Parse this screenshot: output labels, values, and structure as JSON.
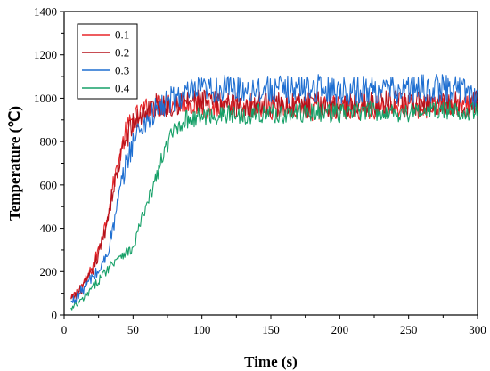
{
  "chart_data": {
    "type": "line",
    "xlabel": "Time (s)",
    "ylabel": "Temperature (℃)",
    "xlim": [
      0,
      300
    ],
    "ylim": [
      0,
      1400
    ],
    "xticks": [
      0,
      50,
      100,
      150,
      200,
      250,
      300
    ],
    "yticks": [
      0,
      200,
      400,
      600,
      800,
      1000,
      1200,
      1400
    ],
    "grid": false,
    "legend_position": "top-left",
    "series": [
      {
        "name": "0.1",
        "color": "#e8272a",
        "x": [
          5,
          10,
          15,
          20,
          25,
          30,
          35,
          40,
          45,
          50,
          55,
          60,
          65,
          70,
          75,
          80,
          85,
          90,
          95,
          100,
          110,
          120,
          130,
          140,
          150,
          160,
          170,
          180,
          190,
          200,
          210,
          220,
          230,
          240,
          250,
          260,
          270,
          280,
          290,
          300
        ],
        "y": [
          70,
          110,
          150,
          210,
          300,
          420,
          580,
          720,
          850,
          900,
          930,
          950,
          960,
          965,
          975,
          980,
          985,
          980,
          970,
          960,
          955,
          950,
          948,
          950,
          955,
          950,
          945,
          950,
          960,
          955,
          950,
          955,
          960,
          958,
          955,
          960,
          965,
          962,
          960,
          965
        ]
      },
      {
        "name": "0.2",
        "color": "#b5121b",
        "x": [
          5,
          10,
          15,
          20,
          25,
          30,
          35,
          40,
          45,
          50,
          55,
          60,
          65,
          70,
          75,
          80,
          85,
          90,
          95,
          100,
          110,
          120,
          130,
          140,
          150,
          160,
          170,
          180,
          190,
          200,
          210,
          220,
          230,
          240,
          250,
          260,
          270,
          280,
          290,
          300
        ],
        "y": [
          65,
          100,
          140,
          190,
          280,
          400,
          560,
          700,
          820,
          880,
          920,
          945,
          960,
          970,
          975,
          980,
          985,
          990,
          985,
          980,
          975,
          970,
          970,
          972,
          975,
          970,
          968,
          970,
          975,
          972,
          970,
          975,
          978,
          975,
          972,
          975,
          980,
          978,
          975,
          978
        ]
      },
      {
        "name": "0.3",
        "color": "#1f6fd1",
        "x": [
          5,
          10,
          15,
          20,
          25,
          30,
          35,
          40,
          45,
          50,
          55,
          60,
          65,
          70,
          75,
          80,
          85,
          90,
          95,
          100,
          110,
          120,
          130,
          140,
          150,
          160,
          170,
          180,
          190,
          200,
          210,
          220,
          230,
          240,
          250,
          260,
          270,
          280,
          290,
          300
        ],
        "y": [
          55,
          90,
          130,
          170,
          200,
          260,
          380,
          550,
          700,
          800,
          860,
          900,
          930,
          955,
          980,
          1000,
          1010,
          1020,
          1030,
          1035,
          1040,
          1045,
          1040,
          1045,
          1040,
          1038,
          1045,
          1050,
          1040,
          1040,
          1035,
          1040,
          1040,
          1035,
          1040,
          1045,
          1045,
          1048,
          1040,
          1010
        ]
      },
      {
        "name": "0.4",
        "color": "#16a068",
        "x": [
          5,
          10,
          15,
          20,
          25,
          30,
          35,
          40,
          45,
          50,
          55,
          60,
          65,
          70,
          75,
          80,
          85,
          90,
          95,
          100,
          110,
          120,
          130,
          140,
          150,
          160,
          170,
          180,
          190,
          200,
          210,
          220,
          230,
          240,
          250,
          260,
          270,
          280,
          290,
          300
        ],
        "y": [
          25,
          50,
          80,
          120,
          160,
          200,
          240,
          275,
          290,
          300,
          420,
          500,
          600,
          700,
          790,
          850,
          890,
          905,
          910,
          915,
          920,
          925,
          925,
          930,
          930,
          925,
          930,
          935,
          935,
          930,
          935,
          940,
          940,
          935,
          935,
          940,
          945,
          942,
          940,
          945
        ]
      }
    ]
  }
}
